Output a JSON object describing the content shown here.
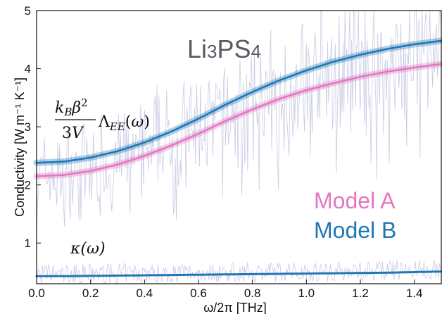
{
  "chart_data": {
    "type": "line",
    "title": "Li₃PS₄",
    "xlabel": "ω/2π [THz]",
    "ylabel": "Conductivity [W m⁻¹ K⁻¹]",
    "xlim": [
      0.0,
      1.5
    ],
    "ylim": [
      0.3,
      5.0
    ],
    "xticks": [
      "0.0",
      "0.2",
      "0.4",
      "0.6",
      "0.8",
      "1.0",
      "1.2",
      "1.4"
    ],
    "yticks": [
      "1",
      "2",
      "3",
      "4",
      "5"
    ],
    "grid": false,
    "legend_position": "bottom-right",
    "annotations": {
      "upper_formula": "kBβ²/3V ΛEE(ω)",
      "lower_formula": "κ(ω)"
    },
    "x": [
      0.0,
      0.1,
      0.2,
      0.3,
      0.4,
      0.5,
      0.6,
      0.7,
      0.8,
      0.9,
      1.0,
      1.1,
      1.2,
      1.3,
      1.4,
      1.5
    ],
    "series": [
      {
        "name": "Model A",
        "color": "#e377c2",
        "values": [
          2.15,
          2.17,
          2.24,
          2.35,
          2.5,
          2.68,
          2.88,
          3.1,
          3.3,
          3.48,
          3.63,
          3.75,
          3.86,
          3.95,
          4.02,
          4.08
        ]
      },
      {
        "name": "Model B",
        "color": "#1f77b4",
        "values": [
          2.38,
          2.4,
          2.47,
          2.58,
          2.73,
          2.92,
          3.14,
          3.38,
          3.6,
          3.8,
          3.97,
          4.12,
          4.24,
          4.34,
          4.42,
          4.48
        ]
      },
      {
        "name": "κ(ω)",
        "color": "#1f77b4",
        "values": [
          0.43,
          0.43,
          0.435,
          0.44,
          0.445,
          0.45,
          0.455,
          0.46,
          0.465,
          0.47,
          0.475,
          0.48,
          0.485,
          0.49,
          0.5,
          0.51
        ]
      }
    ],
    "noise_color": "#b7b9db"
  }
}
